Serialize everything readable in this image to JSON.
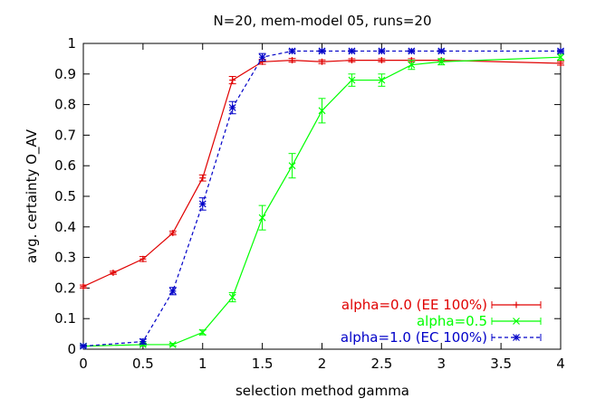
{
  "chart_data": {
    "type": "line",
    "title": "N=20, mem-model 05, runs=20",
    "xlabel": "selection method gamma",
    "ylabel": "avg. certainty O_AV",
    "xlim": [
      0,
      4
    ],
    "ylim": [
      0,
      1
    ],
    "xticks": [
      "0",
      "0.5",
      "1",
      "1.5",
      "2",
      "2.5",
      "3",
      "3.5",
      "4"
    ],
    "yticks": [
      "0",
      "0.1",
      "0.2",
      "0.3",
      "0.4",
      "0.5",
      "0.6",
      "0.7",
      "0.8",
      "0.9",
      "1"
    ],
    "grid": false,
    "legend_position": "bottom-right",
    "series": [
      {
        "name": "alpha=0.0 (EE 100%)",
        "color": "#e00000",
        "dash": "solid",
        "marker": "plus",
        "x": [
          0,
          0.25,
          0.5,
          0.75,
          1.0,
          1.25,
          1.5,
          1.75,
          2.0,
          2.25,
          2.5,
          2.75,
          3.0,
          4.0
        ],
        "y": [
          0.205,
          0.25,
          0.295,
          0.38,
          0.56,
          0.88,
          0.94,
          0.945,
          0.94,
          0.945,
          0.945,
          0.945,
          0.945,
          0.935
        ],
        "err": [
          0.005,
          0.005,
          0.008,
          0.006,
          0.01,
          0.012,
          0.008,
          0.006,
          0.006,
          0.005,
          0.005,
          0.005,
          0.005,
          0.006
        ]
      },
      {
        "name": "alpha=0.5",
        "color": "#00ff00",
        "dash": "solid",
        "marker": "x",
        "x": [
          0,
          0.5,
          0.75,
          1.0,
          1.25,
          1.5,
          1.75,
          2.0,
          2.25,
          2.5,
          2.75,
          3.0,
          4.0
        ],
        "y": [
          0.01,
          0.015,
          0.015,
          0.055,
          0.17,
          0.43,
          0.6,
          0.78,
          0.88,
          0.88,
          0.93,
          0.94,
          0.955
        ],
        "err": [
          0.004,
          0.004,
          0.004,
          0.008,
          0.015,
          0.04,
          0.04,
          0.04,
          0.02,
          0.02,
          0.015,
          0.01,
          0.01
        ]
      },
      {
        "name": "alpha=1.0 (EC 100%)",
        "color": "#0000c8",
        "dash": "dashed",
        "marker": "star",
        "x": [
          0,
          0.5,
          0.75,
          1.0,
          1.25,
          1.5,
          1.75,
          2.0,
          2.25,
          2.5,
          2.75,
          3.0,
          4.0
        ],
        "y": [
          0.01,
          0.025,
          0.19,
          0.475,
          0.79,
          0.955,
          0.975,
          0.975,
          0.975,
          0.975,
          0.975,
          0.975,
          0.975
        ],
        "err": [
          0.004,
          0.008,
          0.012,
          0.02,
          0.02,
          0.012,
          0.005,
          0.004,
          0.004,
          0.004,
          0.004,
          0.004,
          0.004
        ]
      }
    ]
  }
}
